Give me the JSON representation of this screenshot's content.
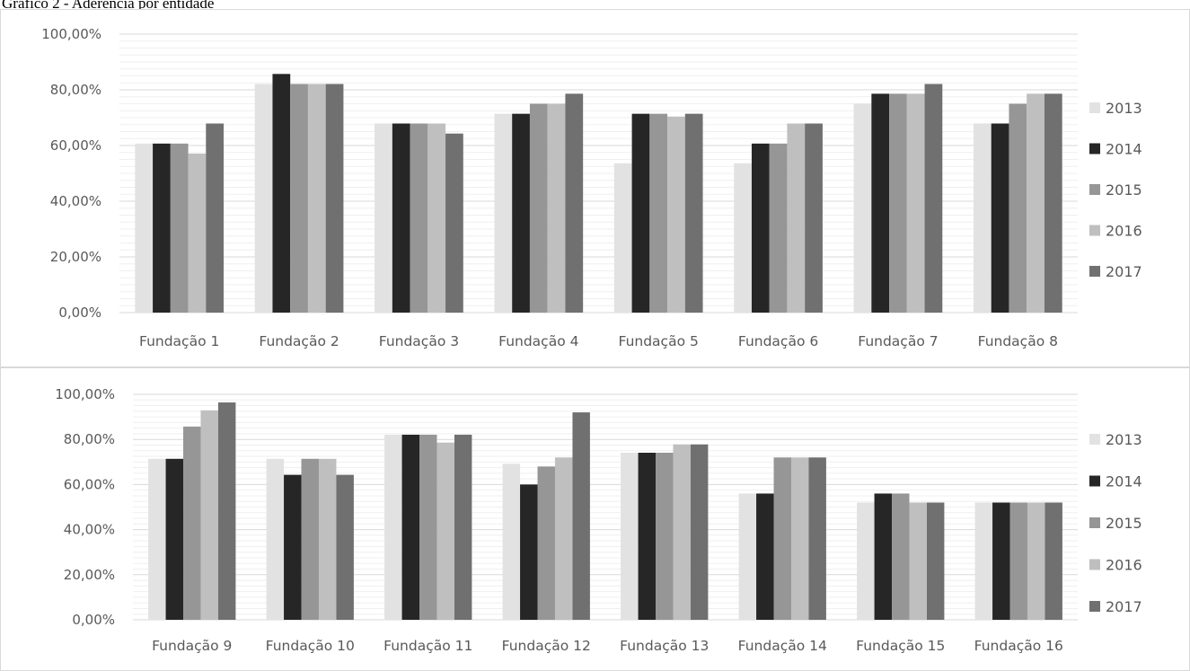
{
  "page_title": "Gráfico 2 - Aderência por entidade",
  "colors": {
    "2013": "#e2e2e2",
    "2014": "#262626",
    "2015": "#969696",
    "2016": "#bfbfbf",
    "2017": "#707070",
    "gridline": "#d9d9d9",
    "minor_gridline": "#efefef",
    "axis_text": "#595959",
    "border": "#d9d9d9"
  },
  "chart_data": [
    {
      "type": "bar",
      "title": "",
      "xlabel": "",
      "ylabel": "",
      "ylim": [
        0,
        1
      ],
      "y_ticks": [
        "0,00%",
        "20,00%",
        "40,00%",
        "60,00%",
        "80,00%",
        "100,00%"
      ],
      "grid": true,
      "legend_position": "right",
      "categories": [
        "Fundação 1",
        "Fundação 2",
        "Fundação 3",
        "Fundação 4",
        "Fundação 5",
        "Fundação 6",
        "Fundação 7",
        "Fundação 8"
      ],
      "series": [
        {
          "name": "2013",
          "values": [
            0.607,
            0.821,
            0.679,
            0.714,
            0.536,
            0.536,
            0.75,
            0.679
          ]
        },
        {
          "name": "2014",
          "values": [
            0.607,
            0.857,
            0.679,
            0.714,
            0.714,
            0.607,
            0.786,
            0.679
          ]
        },
        {
          "name": "2015",
          "values": [
            0.607,
            0.821,
            0.679,
            0.75,
            0.714,
            0.607,
            0.786,
            0.75
          ]
        },
        {
          "name": "2016",
          "values": [
            0.571,
            0.821,
            0.679,
            0.75,
            0.704,
            0.679,
            0.786,
            0.786
          ]
        },
        {
          "name": "2017",
          "values": [
            0.679,
            0.821,
            0.643,
            0.786,
            0.714,
            0.679,
            0.821,
            0.786
          ]
        }
      ]
    },
    {
      "type": "bar",
      "title": "",
      "xlabel": "",
      "ylabel": "",
      "ylim": [
        0,
        1
      ],
      "y_ticks": [
        "0,00%",
        "20,00%",
        "40,00%",
        "60,00%",
        "80,00%",
        "100,00%"
      ],
      "grid": true,
      "legend_position": "right",
      "categories": [
        "Fundação 9",
        "Fundação 10",
        "Fundação 11",
        "Fundação 12",
        "Fundação 13",
        "Fundação 14",
        "Fundação 15",
        "Fundação 16"
      ],
      "series": [
        {
          "name": "2013",
          "values": [
            0.714,
            0.714,
            0.821,
            0.692,
            0.741,
            0.56,
            0.52,
            0.52
          ]
        },
        {
          "name": "2014",
          "values": [
            0.714,
            0.643,
            0.821,
            0.6,
            0.741,
            0.56,
            0.56,
            0.52
          ]
        },
        {
          "name": "2015",
          "values": [
            0.857,
            0.714,
            0.821,
            0.68,
            0.741,
            0.72,
            0.56,
            0.52
          ]
        },
        {
          "name": "2016",
          "values": [
            0.929,
            0.714,
            0.786,
            0.72,
            0.778,
            0.72,
            0.52,
            0.52
          ]
        },
        {
          "name": "2017",
          "values": [
            0.964,
            0.643,
            0.821,
            0.92,
            0.778,
            0.72,
            0.52,
            0.52
          ]
        }
      ]
    }
  ]
}
